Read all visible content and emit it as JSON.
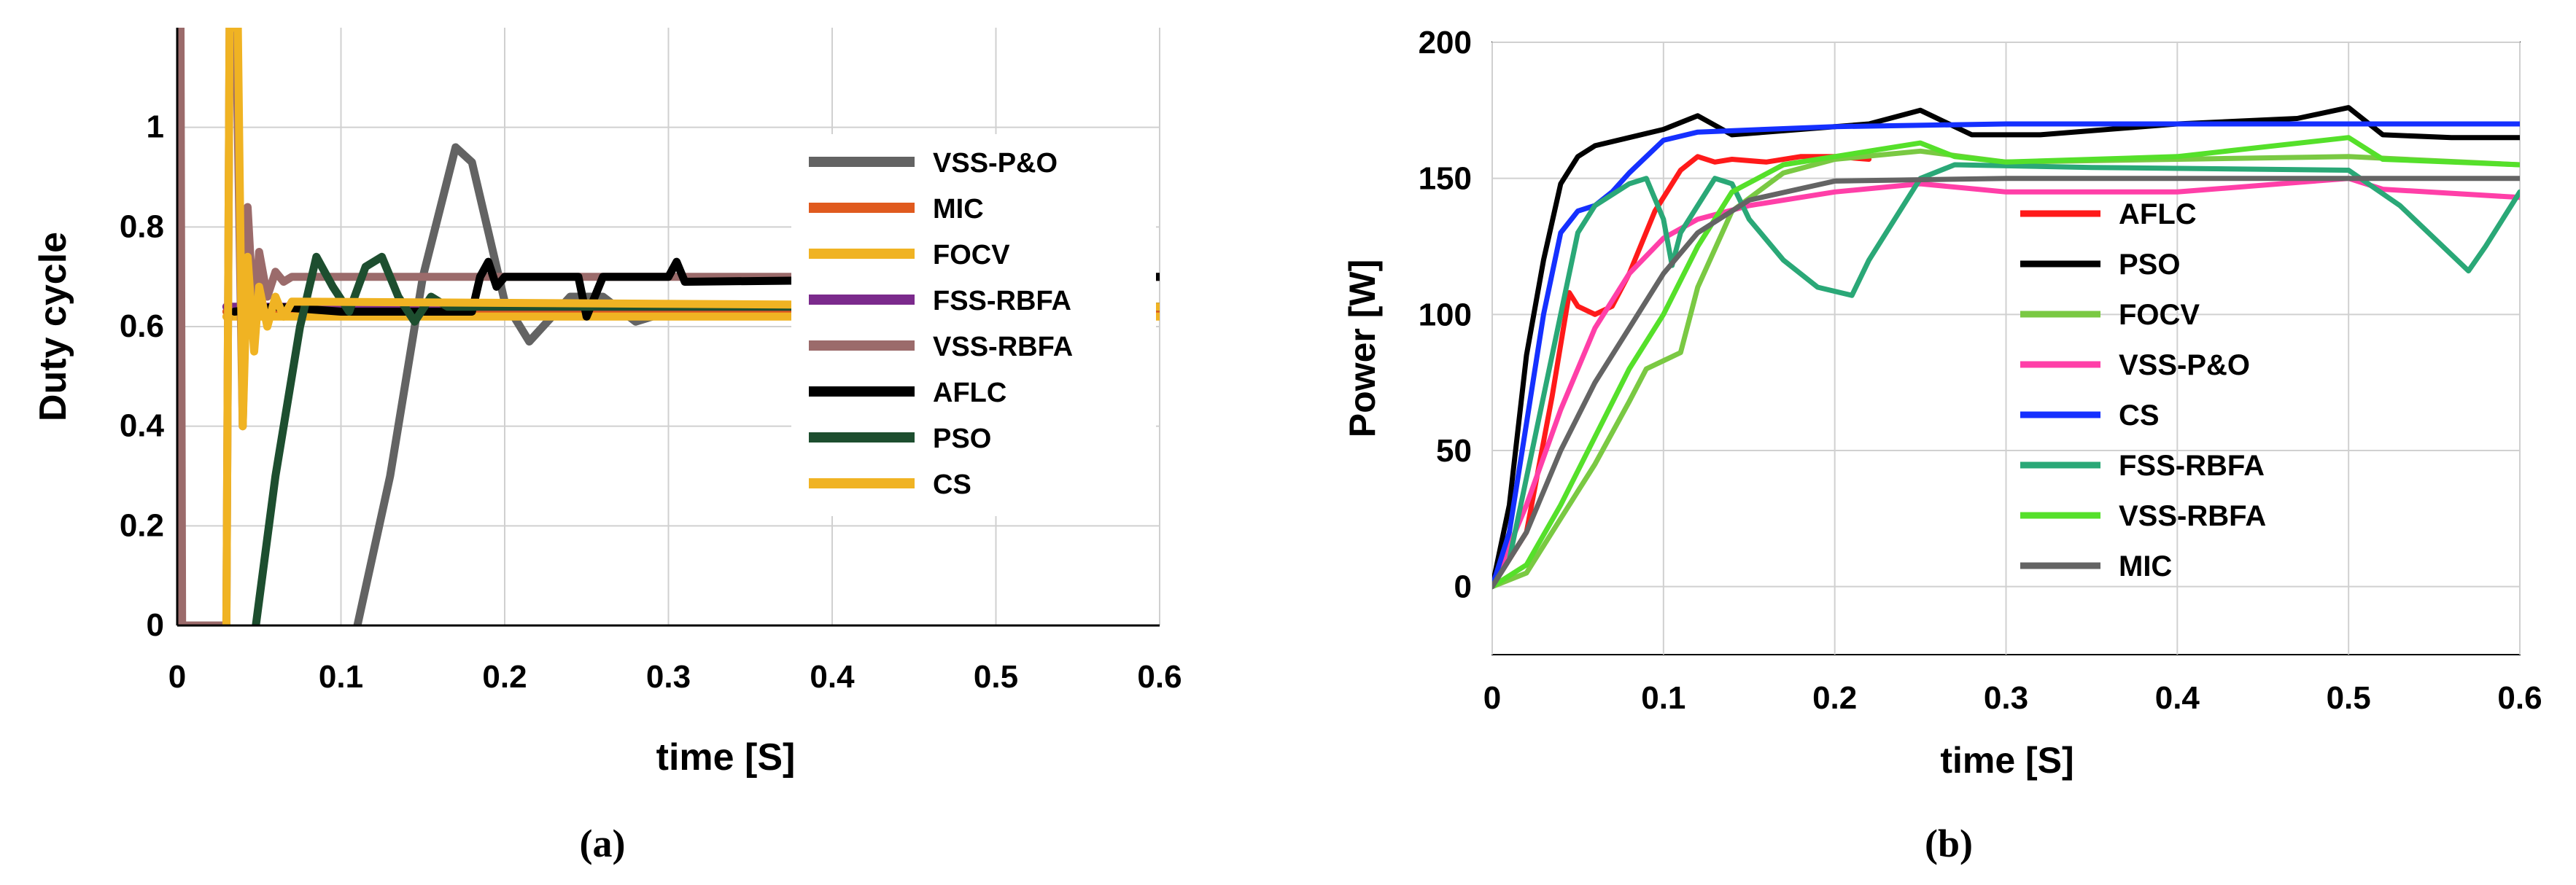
{
  "chart_data": [
    {
      "type": "line",
      "caption": "(a)",
      "title": "",
      "xlabel": "time [S]",
      "ylabel": "Duty cycle",
      "xlim": [
        0,
        0.6
      ],
      "ylim": [
        0,
        1.2
      ],
      "x_ticks": [
        "0",
        "0.1",
        "0.2",
        "0.3",
        "0.4",
        "0.5",
        "0.6"
      ],
      "y_ticks": [
        "0",
        "0.2",
        "0.4",
        "0.6",
        "0.8",
        "1"
      ],
      "grid": true,
      "legend_position": "right",
      "series": [
        {
          "name": "VSS-P&O",
          "color": "#636363",
          "points": [
            [
              0.11,
              0
            ],
            [
              0.13,
              0.3
            ],
            [
              0.15,
              0.7
            ],
            [
              0.17,
              0.96
            ],
            [
              0.18,
              0.93
            ],
            [
              0.2,
              0.65
            ],
            [
              0.215,
              0.57
            ],
            [
              0.24,
              0.66
            ],
            [
              0.26,
              0.66
            ],
            [
              0.28,
              0.61
            ],
            [
              0.3,
              0.63
            ],
            [
              0.35,
              0.64
            ],
            [
              0.6,
              0.64
            ]
          ]
        },
        {
          "name": "MIC",
          "color": "#e05a1e",
          "points": [
            [
              0.03,
              0.63
            ],
            [
              0.1,
              0.63
            ],
            [
              0.2,
              0.63
            ],
            [
              0.3,
              0.63
            ],
            [
              0.6,
              0.63
            ]
          ]
        },
        {
          "name": "FOCV",
          "color": "#f0b323",
          "points": [
            [
              0.03,
              0.62
            ],
            [
              0.1,
              0.62
            ],
            [
              0.3,
              0.62
            ],
            [
              0.6,
              0.62
            ]
          ]
        },
        {
          "name": "FSS-RBFA",
          "color": "#7b2a8c",
          "points": [
            [
              0.03,
              0.64
            ],
            [
              0.1,
              0.64
            ],
            [
              0.3,
              0.64
            ],
            [
              0.6,
              0.64
            ]
          ]
        },
        {
          "name": "VSS-RBFA",
          "color": "#9b6b6b",
          "points": [
            [
              0,
              1.2
            ],
            [
              0.002,
              1.2
            ],
            [
              0.003,
              0
            ],
            [
              0.03,
              0
            ],
            [
              0.032,
              1.2
            ],
            [
              0.036,
              1.2
            ],
            [
              0.04,
              0.4
            ],
            [
              0.043,
              0.84
            ],
            [
              0.047,
              0.6
            ],
            [
              0.05,
              0.75
            ],
            [
              0.055,
              0.66
            ],
            [
              0.06,
              0.71
            ],
            [
              0.065,
              0.69
            ],
            [
              0.07,
              0.7
            ],
            [
              0.6,
              0.7
            ]
          ]
        },
        {
          "name": "AFLC",
          "color": "#000000",
          "points": [
            [
              0.035,
              0.63
            ],
            [
              0.06,
              0.64
            ],
            [
              0.1,
              0.63
            ],
            [
              0.18,
              0.63
            ],
            [
              0.185,
              0.7
            ],
            [
              0.19,
              0.73
            ],
            [
              0.195,
              0.68
            ],
            [
              0.2,
              0.7
            ],
            [
              0.245,
              0.7
            ],
            [
              0.25,
              0.62
            ],
            [
              0.255,
              0.66
            ],
            [
              0.26,
              0.7
            ],
            [
              0.3,
              0.7
            ],
            [
              0.305,
              0.73
            ],
            [
              0.31,
              0.69
            ],
            [
              0.6,
              0.7
            ]
          ]
        },
        {
          "name": "PSO",
          "color": "#1d4e2f",
          "points": [
            [
              0.048,
              0
            ],
            [
              0.06,
              0.3
            ],
            [
              0.075,
              0.6
            ],
            [
              0.085,
              0.74
            ],
            [
              0.095,
              0.68
            ],
            [
              0.105,
              0.63
            ],
            [
              0.115,
              0.72
            ],
            [
              0.125,
              0.74
            ],
            [
              0.135,
              0.66
            ],
            [
              0.145,
              0.61
            ],
            [
              0.155,
              0.66
            ],
            [
              0.165,
              0.64
            ],
            [
              0.3,
              0.64
            ],
            [
              0.6,
              0.64
            ]
          ]
        },
        {
          "name": "CS",
          "color": "#f0b323",
          "points": [
            [
              0.03,
              0
            ],
            [
              0.032,
              1.2
            ],
            [
              0.037,
              1.2
            ],
            [
              0.04,
              0.4
            ],
            [
              0.043,
              0.74
            ],
            [
              0.047,
              0.55
            ],
            [
              0.05,
              0.68
            ],
            [
              0.055,
              0.6
            ],
            [
              0.06,
              0.66
            ],
            [
              0.065,
              0.62
            ],
            [
              0.07,
              0.65
            ],
            [
              0.6,
              0.64
            ]
          ]
        }
      ]
    },
    {
      "type": "line",
      "caption": "(b)",
      "title": "",
      "xlabel": "time [S]",
      "ylabel": "Power [W]",
      "xlim": [
        0,
        0.6
      ],
      "ylim": [
        -25,
        200
      ],
      "x_ticks": [
        "0",
        "0.1",
        "0.2",
        "0.3",
        "0.4",
        "0.5",
        "0.6"
      ],
      "y_ticks": [
        "0",
        "50",
        "100",
        "150",
        "200"
      ],
      "grid": true,
      "legend_position": "right",
      "series": [
        {
          "name": "AFLC",
          "color": "#ff1a1a",
          "points": [
            [
              0,
              0
            ],
            [
              0.02,
              20
            ],
            [
              0.035,
              70
            ],
            [
              0.045,
              108
            ],
            [
              0.05,
              103
            ],
            [
              0.06,
              100
            ],
            [
              0.07,
              103
            ],
            [
              0.08,
              115
            ],
            [
              0.095,
              138
            ],
            [
              0.11,
              153
            ],
            [
              0.12,
              158
            ],
            [
              0.13,
              156
            ],
            [
              0.14,
              157
            ],
            [
              0.16,
              156
            ],
            [
              0.18,
              158
            ],
            [
              0.2,
              158
            ],
            [
              0.22,
              157
            ]
          ]
        },
        {
          "name": "PSO",
          "color": "#000000",
          "points": [
            [
              0,
              0
            ],
            [
              0.01,
              30
            ],
            [
              0.02,
              85
            ],
            [
              0.03,
              120
            ],
            [
              0.04,
              148
            ],
            [
              0.05,
              158
            ],
            [
              0.06,
              162
            ],
            [
              0.08,
              165
            ],
            [
              0.1,
              168
            ],
            [
              0.12,
              173
            ],
            [
              0.14,
              166
            ],
            [
              0.18,
              168
            ],
            [
              0.22,
              170
            ],
            [
              0.25,
              175
            ],
            [
              0.28,
              166
            ],
            [
              0.32,
              166
            ],
            [
              0.4,
              170
            ],
            [
              0.47,
              172
            ],
            [
              0.5,
              176
            ],
            [
              0.52,
              166
            ],
            [
              0.56,
              165
            ],
            [
              0.6,
              165
            ]
          ]
        },
        {
          "name": "FOCV",
          "color": "#7ac943",
          "points": [
            [
              0,
              0
            ],
            [
              0.02,
              5
            ],
            [
              0.04,
              25
            ],
            [
              0.06,
              45
            ],
            [
              0.08,
              68
            ],
            [
              0.09,
              80
            ],
            [
              0.1,
              83
            ],
            [
              0.11,
              86
            ],
            [
              0.12,
              110
            ],
            [
              0.14,
              138
            ],
            [
              0.17,
              152
            ],
            [
              0.2,
              157
            ],
            [
              0.25,
              160
            ],
            [
              0.3,
              156
            ],
            [
              0.4,
              157
            ],
            [
              0.5,
              158
            ],
            [
              0.6,
              155
            ]
          ]
        },
        {
          "name": "VSS-P&O",
          "color": "#ff3fa8",
          "points": [
            [
              0,
              0
            ],
            [
              0.02,
              30
            ],
            [
              0.04,
              65
            ],
            [
              0.06,
              95
            ],
            [
              0.08,
              115
            ],
            [
              0.1,
              128
            ],
            [
              0.12,
              135
            ],
            [
              0.15,
              140
            ],
            [
              0.2,
              145
            ],
            [
              0.25,
              148
            ],
            [
              0.3,
              145
            ],
            [
              0.4,
              145
            ],
            [
              0.5,
              150
            ],
            [
              0.52,
              146
            ],
            [
              0.6,
              143
            ]
          ]
        },
        {
          "name": "CS",
          "color": "#1530ff",
          "points": [
            [
              0,
              0
            ],
            [
              0.01,
              20
            ],
            [
              0.02,
              60
            ],
            [
              0.03,
              100
            ],
            [
              0.04,
              130
            ],
            [
              0.05,
              138
            ],
            [
              0.06,
              140
            ],
            [
              0.07,
              145
            ],
            [
              0.08,
              152
            ],
            [
              0.09,
              158
            ],
            [
              0.1,
              164
            ],
            [
              0.12,
              167
            ],
            [
              0.2,
              169
            ],
            [
              0.3,
              170
            ],
            [
              0.4,
              170
            ],
            [
              0.5,
              170
            ],
            [
              0.6,
              170
            ]
          ]
        },
        {
          "name": "FSS-RBFA",
          "color": "#2aa877",
          "points": [
            [
              0,
              0
            ],
            [
              0.01,
              10
            ],
            [
              0.02,
              40
            ],
            [
              0.04,
              100
            ],
            [
              0.05,
              130
            ],
            [
              0.06,
              140
            ],
            [
              0.08,
              148
            ],
            [
              0.09,
              150
            ],
            [
              0.1,
              135
            ],
            [
              0.105,
              118
            ],
            [
              0.11,
              130
            ],
            [
              0.13,
              150
            ],
            [
              0.14,
              148
            ],
            [
              0.15,
              135
            ],
            [
              0.17,
              120
            ],
            [
              0.19,
              110
            ],
            [
              0.21,
              107
            ],
            [
              0.22,
              120
            ],
            [
              0.24,
              140
            ],
            [
              0.25,
              150
            ],
            [
              0.27,
              155
            ],
            [
              0.35,
              154
            ],
            [
              0.5,
              153
            ],
            [
              0.53,
              140
            ],
            [
              0.56,
              122
            ],
            [
              0.57,
              116
            ],
            [
              0.58,
              125
            ],
            [
              0.6,
              145
            ]
          ]
        },
        {
          "name": "VSS-RBFA",
          "color": "#55e02a",
          "points": [
            [
              0,
              0
            ],
            [
              0.02,
              8
            ],
            [
              0.04,
              30
            ],
            [
              0.06,
              55
            ],
            [
              0.08,
              80
            ],
            [
              0.1,
              100
            ],
            [
              0.12,
              125
            ],
            [
              0.14,
              145
            ],
            [
              0.17,
              155
            ],
            [
              0.2,
              158
            ],
            [
              0.25,
              163
            ],
            [
              0.27,
              158
            ],
            [
              0.3,
              156
            ],
            [
              0.4,
              158
            ],
            [
              0.5,
              165
            ],
            [
              0.52,
              157
            ],
            [
              0.6,
              155
            ]
          ]
        },
        {
          "name": "MIC",
          "color": "#646464",
          "points": [
            [
              0,
              0
            ],
            [
              0.02,
              20
            ],
            [
              0.04,
              50
            ],
            [
              0.06,
              75
            ],
            [
              0.08,
              95
            ],
            [
              0.1,
              115
            ],
            [
              0.12,
              130
            ],
            [
              0.15,
              142
            ],
            [
              0.2,
              149
            ],
            [
              0.3,
              150
            ],
            [
              0.4,
              150
            ],
            [
              0.5,
              150
            ],
            [
              0.6,
              150
            ]
          ]
        }
      ]
    }
  ]
}
